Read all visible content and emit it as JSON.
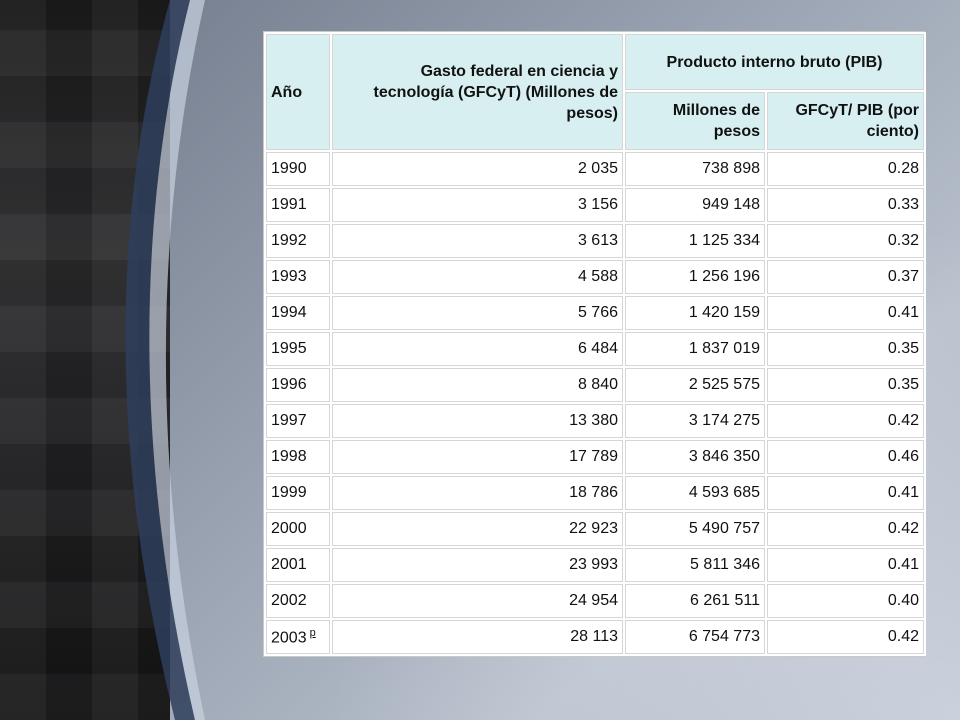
{
  "table": {
    "headers": {
      "anio": "Año",
      "gasto": "Gasto federal en ciencia y tecnología (GFCyT) (Millones de pesos)",
      "pib_group": "Producto interno bruto (PIB)",
      "pib_millones": "Millones de pesos",
      "gfcyt_pib": "GFCyT/ PIB (por ciento)"
    },
    "rows": [
      {
        "year": "1990",
        "note": "",
        "gasto": "2 035",
        "pib": "738 898",
        "ratio": "0.28"
      },
      {
        "year": "1991",
        "note": "",
        "gasto": "3 156",
        "pib": "949 148",
        "ratio": "0.33"
      },
      {
        "year": "1992",
        "note": "",
        "gasto": "3 613",
        "pib": "1 125 334",
        "ratio": "0.32"
      },
      {
        "year": "1993",
        "note": "",
        "gasto": "4 588",
        "pib": "1 256 196",
        "ratio": "0.37"
      },
      {
        "year": "1994",
        "note": "",
        "gasto": "5 766",
        "pib": "1 420 159",
        "ratio": "0.41"
      },
      {
        "year": "1995",
        "note": "",
        "gasto": "6 484",
        "pib": "1 837 019",
        "ratio": "0.35"
      },
      {
        "year": "1996",
        "note": "",
        "gasto": "8 840",
        "pib": "2 525 575",
        "ratio": "0.35"
      },
      {
        "year": "1997",
        "note": "",
        "gasto": "13 380",
        "pib": "3 174 275",
        "ratio": "0.42"
      },
      {
        "year": "1998",
        "note": "",
        "gasto": "17 789",
        "pib": "3 846 350",
        "ratio": "0.46"
      },
      {
        "year": "1999",
        "note": "",
        "gasto": "18 786",
        "pib": "4 593 685",
        "ratio": "0.41"
      },
      {
        "year": "2000",
        "note": "",
        "gasto": "22 923",
        "pib": "5 490 757",
        "ratio": "0.42"
      },
      {
        "year": "2001",
        "note": "",
        "gasto": "23 993",
        "pib": "5 811 346",
        "ratio": "0.41"
      },
      {
        "year": "2002",
        "note": "",
        "gasto": "24 954",
        "pib": "6 261 511",
        "ratio": "0.40"
      },
      {
        "year": "2003",
        "note": "p",
        "gasto": "28 113",
        "pib": "6 754 773",
        "ratio": "0.42"
      }
    ]
  }
}
